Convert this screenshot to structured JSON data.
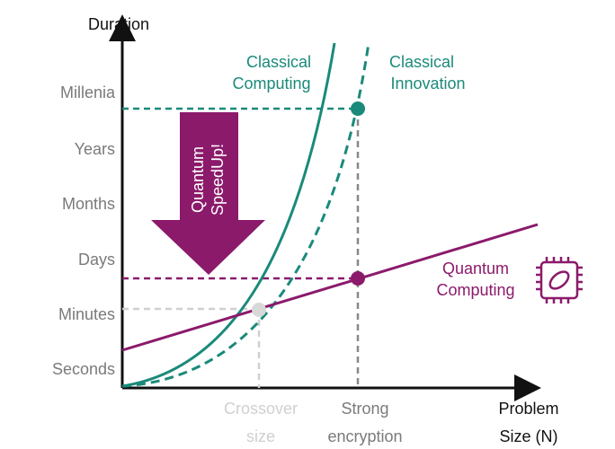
{
  "axis": {
    "y_title": "Duration",
    "y_labels": [
      "Millenia",
      "Years",
      "Months",
      "Days",
      "Minutes",
      "Seconds"
    ],
    "x_title": [
      "Problem",
      "Size (N)"
    ]
  },
  "curves": {
    "classical_computing": [
      "Classical",
      "Computing"
    ],
    "classical_innovation": [
      "Classical",
      "Innovation"
    ],
    "quantum_computing": [
      "Quantum",
      "Computing"
    ]
  },
  "speedup_arrow": [
    "Quantum",
    "SpeedUp!"
  ],
  "x_labels": {
    "crossover": [
      "Crossover",
      "size"
    ],
    "strong_encryption": [
      "Strong",
      "encryption"
    ]
  }
}
